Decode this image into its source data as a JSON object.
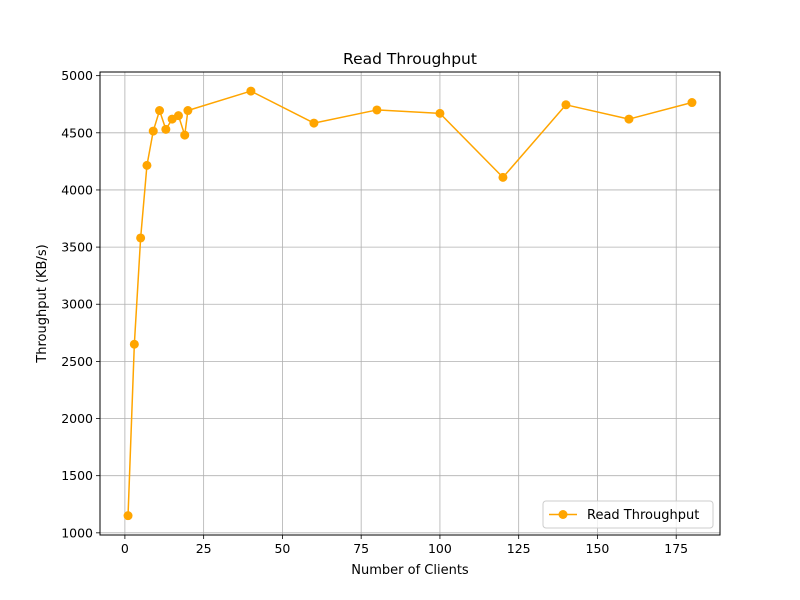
{
  "chart_data": {
    "type": "line",
    "title": "Read Throughput",
    "xlabel": "Number of Clients",
    "ylabel": "Throughput (KB/s)",
    "xlim": [
      -7.9,
      188.9
    ],
    "ylim": [
      981,
      5032
    ],
    "xticks": [
      0,
      25,
      50,
      75,
      100,
      125,
      150,
      175
    ],
    "yticks": [
      1000,
      1500,
      2000,
      2500,
      3000,
      3500,
      4000,
      4500,
      5000
    ],
    "grid": true,
    "legend_position": "bottom-right",
    "series": [
      {
        "name": "Read Throughput",
        "color": "#FFA500",
        "marker": "circle",
        "x": [
          1,
          3,
          5,
          7,
          9,
          11,
          13,
          15,
          17,
          19,
          20,
          40,
          60,
          80,
          100,
          120,
          140,
          160,
          180
        ],
        "y": [
          1150,
          2650,
          3580,
          4215,
          4515,
          4695,
          4530,
          4620,
          4650,
          4480,
          4695,
          4865,
          4585,
          4700,
          4670,
          4110,
          4745,
          4620,
          4765
        ]
      }
    ]
  }
}
